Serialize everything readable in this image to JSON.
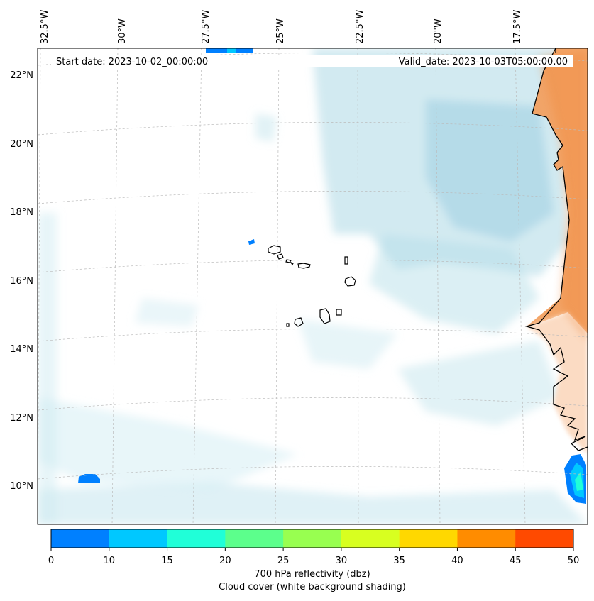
{
  "header": {
    "start_date": "Start date: 2023-10-02_00:00:00",
    "valid_date": "Valid_date: 2023-10-03T05:00:00.00"
  },
  "map": {
    "lon_labels": [
      "32.5°W",
      "30°W",
      "27.5°W",
      "25°W",
      "22.5°W",
      "20°W",
      "17.5°W"
    ],
    "lat_labels": [
      "22°N",
      "20°N",
      "18°N",
      "16°N",
      "14°N",
      "12°N",
      "10°N"
    ],
    "land_color": "#f2a060",
    "cloud_color": "#add8e6"
  },
  "colorbar": {
    "ticks": [
      "0",
      "10",
      "15",
      "20",
      "25",
      "30",
      "35",
      "40",
      "45",
      "50"
    ],
    "colors": [
      "#0080ff",
      "#00c8ff",
      "#20ffd8",
      "#5cff8c",
      "#98ff50",
      "#d8ff20",
      "#ffd800",
      "#ff8c00",
      "#ff4a00"
    ],
    "label": "700 hPa reflectivity (dbz)",
    "sublabel": "Cloud cover (white background shading)"
  }
}
